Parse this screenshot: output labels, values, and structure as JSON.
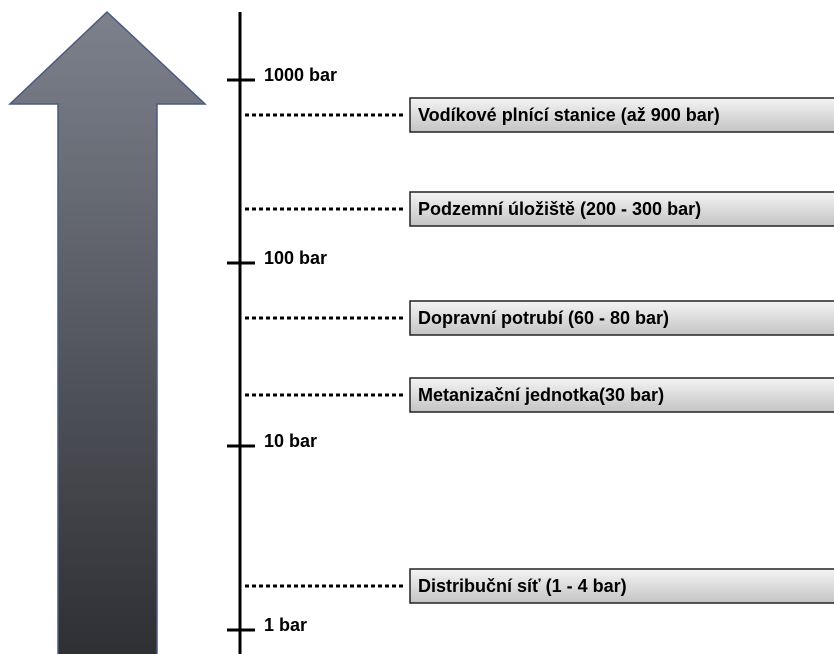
{
  "axis": {
    "ticks": [
      "1000 bar",
      "100 bar",
      "10 bar",
      "1 bar"
    ]
  },
  "items": [
    "Vodíkové plnící stanice (až 900 bar)",
    "Podzemní úložiště (200 - 300 bar)",
    "Dopravní potrubí (60 - 80 bar)",
    "Metanizační jednotka(30 bar)",
    "Distribuční síť (1 - 4 bar)"
  ]
}
